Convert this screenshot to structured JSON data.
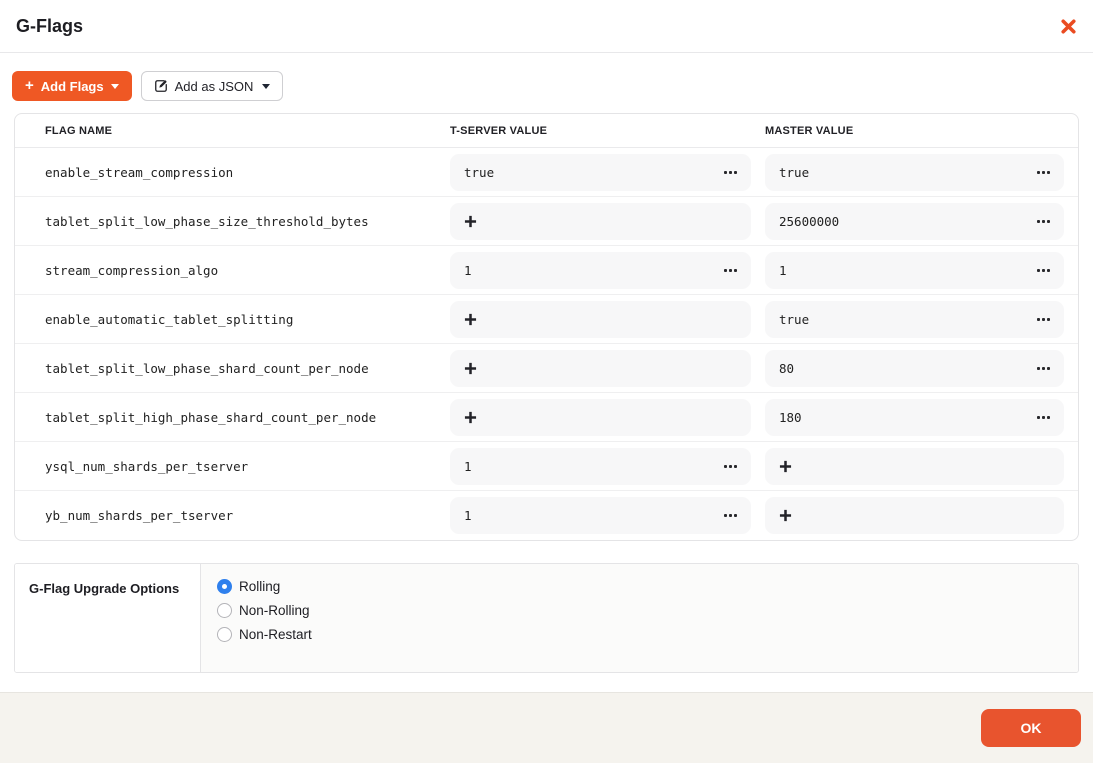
{
  "modal": {
    "title": "G-Flags"
  },
  "toolbar": {
    "add_flags_label": "Add Flags",
    "add_as_json_label": "Add as JSON",
    "add_flags_plus_icon": "+",
    "caret_icon": "caret-down"
  },
  "table": {
    "columns": [
      "FLAG NAME",
      "T-SERVER VALUE",
      "MASTER VALUE"
    ],
    "rows": [
      {
        "flag": "enable_stream_compression",
        "tserver": {
          "type": "value",
          "value": "true"
        },
        "master": {
          "type": "value",
          "value": "true"
        }
      },
      {
        "flag": "tablet_split_low_phase_size_threshold_bytes",
        "tserver": {
          "type": "add"
        },
        "master": {
          "type": "value",
          "value": "25600000"
        }
      },
      {
        "flag": "stream_compression_algo",
        "tserver": {
          "type": "value",
          "value": "1"
        },
        "master": {
          "type": "value",
          "value": "1"
        }
      },
      {
        "flag": "enable_automatic_tablet_splitting",
        "tserver": {
          "type": "add"
        },
        "master": {
          "type": "value",
          "value": "true"
        }
      },
      {
        "flag": "tablet_split_low_phase_shard_count_per_node",
        "tserver": {
          "type": "add"
        },
        "master": {
          "type": "value",
          "value": "80"
        }
      },
      {
        "flag": "tablet_split_high_phase_shard_count_per_node",
        "tserver": {
          "type": "add"
        },
        "master": {
          "type": "value",
          "value": "180"
        }
      },
      {
        "flag": "ysql_num_shards_per_tserver",
        "tserver": {
          "type": "value",
          "value": "1"
        },
        "master": {
          "type": "add"
        }
      },
      {
        "flag": "yb_num_shards_per_tserver",
        "tserver": {
          "type": "value",
          "value": "1"
        },
        "master": {
          "type": "add"
        }
      }
    ]
  },
  "upgrade_options": {
    "label": "G-Flag Upgrade Options",
    "options": [
      {
        "label": "Rolling",
        "selected": true
      },
      {
        "label": "Non-Rolling",
        "selected": false
      },
      {
        "label": "Non-Restart",
        "selected": false
      }
    ]
  },
  "footer": {
    "ok_label": "OK"
  },
  "icons": {
    "close": "close-icon",
    "edit": "edit-pencil-square-icon",
    "add_value": "plus-icon",
    "row_menu": "more-options-ellipsis-icon"
  },
  "colors": {
    "accent_orange": "#ef5824",
    "ok_button_orange": "#e8542e",
    "radio_blue": "#2f80ed",
    "footer_background": "#f5f3ee",
    "value_box_background": "#f7f7f8"
  }
}
